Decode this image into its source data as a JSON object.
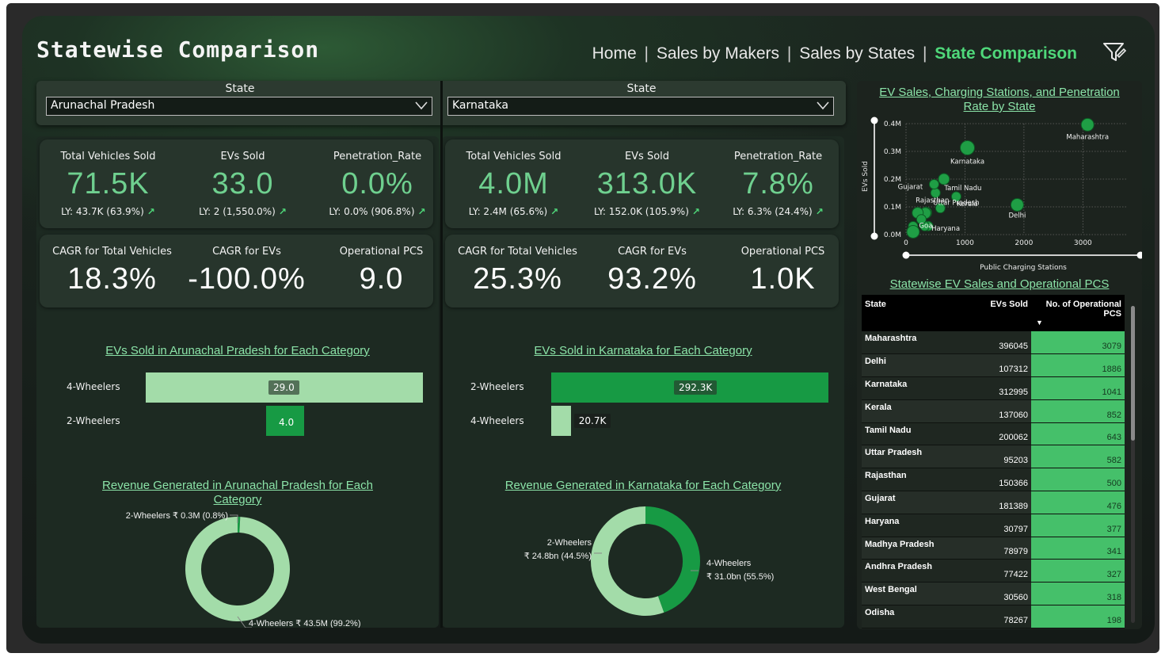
{
  "header": {
    "title": "Statewise Comparison",
    "nav": {
      "home": "Home",
      "makers": "Sales by Makers",
      "states": "Sales by States",
      "compare": "State Comparison",
      "sep": "|"
    },
    "filter_icon": "filter-icon"
  },
  "slicers": {
    "left": {
      "label": "State",
      "value": "Arunachal Pradesh"
    },
    "right": {
      "label": "State",
      "value": "Karnataka"
    }
  },
  "left": {
    "kpis": {
      "total": {
        "label": "Total Vehicles Sold",
        "value": "71.5K",
        "ly": "LY: 43.7K (63.9%)"
      },
      "evs": {
        "label": "EVs Sold",
        "value": "33.0",
        "ly": "LY: 2 (1,550.0%)"
      },
      "pen": {
        "label": "Penetration_Rate",
        "value": "0.0%",
        "ly": "LY: 0.0% (906.8%)"
      }
    },
    "cagr": {
      "total": {
        "label": "CAGR for Total Vehicles",
        "value": "18.3%"
      },
      "evs": {
        "label": "CAGR for EVs",
        "value": "-100.0%"
      },
      "pcs": {
        "label": "Operational PCS",
        "value": "9.0"
      }
    },
    "bar_title": "EVs Sold in Arunachal Pradesh for Each Category",
    "donut_title_1": "Revenue Generated in Arunachal Pradesh for Each",
    "donut_title_2": "Category",
    "donut_labels": {
      "a": "2-Wheelers ₹ 0.3M (0.8%)",
      "b": "4-Wheelers ₹ 43.5M (99.2%)"
    }
  },
  "right": {
    "kpis": {
      "total": {
        "label": "Total Vehicles Sold",
        "value": "4.0M",
        "ly": "LY: 2.4M (65.6%)"
      },
      "evs": {
        "label": "EVs Sold",
        "value": "313.0K",
        "ly": "LY: 152.0K (105.9%)"
      },
      "pen": {
        "label": "Penetration_Rate",
        "value": "7.8%",
        "ly": "LY: 6.3% (24.4%)"
      }
    },
    "cagr": {
      "total": {
        "label": "CAGR for Total Vehicles",
        "value": "25.3%"
      },
      "evs": {
        "label": "CAGR for EVs",
        "value": "93.2%"
      },
      "pcs": {
        "label": "Operational PCS",
        "value": "1.0K"
      }
    },
    "bar_title": "EVs Sold in Karnataka for Each Category",
    "donut_title": "Revenue Generated in Karnataka for Each Category",
    "donut_labels": {
      "a1": "2-Wheelers",
      "a2": "₹ 24.8bn (44.5%)",
      "b1": "4-Wheelers",
      "b2": "₹ 31.0bn (55.5%)"
    }
  },
  "scatter_title_1": "EV Sales, Charging Stations, and Penetration",
  "scatter_title_2": "Rate by State",
  "table": {
    "title": "Statewise EV Sales and Operational PCS",
    "headers": [
      "State",
      "EVs Sold",
      "No. of Operational PCS"
    ],
    "rows": [
      [
        "Maharashtra",
        "396045",
        "3079"
      ],
      [
        "Delhi",
        "107312",
        "1886"
      ],
      [
        "Karnataka",
        "312995",
        "1041"
      ],
      [
        "Kerala",
        "137060",
        "852"
      ],
      [
        "Tamil Nadu",
        "200062",
        "643"
      ],
      [
        "Uttar Pradesh",
        "95203",
        "582"
      ],
      [
        "Rajasthan",
        "150366",
        "500"
      ],
      [
        "Gujarat",
        "181389",
        "476"
      ],
      [
        "Haryana",
        "30797",
        "377"
      ],
      [
        "Madhya Pradesh",
        "78979",
        "341"
      ],
      [
        "Andhra Pradesh",
        "77422",
        "327"
      ],
      [
        "West Bengal",
        "30560",
        "318"
      ],
      [
        "Odisha",
        "78267",
        "198"
      ]
    ]
  },
  "chart_data": [
    {
      "type": "bar",
      "title": "EVs Sold in Arunachal Pradesh for Each Category",
      "orientation": "horizontal",
      "categories": [
        "4-Wheelers",
        "2-Wheelers"
      ],
      "values": [
        29,
        4
      ],
      "value_labels": [
        "29.0",
        "4.0"
      ],
      "colors": [
        "#a3dca9",
        "#179a44"
      ]
    },
    {
      "type": "bar",
      "title": "EVs Sold in Karnataka for Each Category",
      "orientation": "horizontal",
      "categories": [
        "2-Wheelers",
        "4-Wheelers"
      ],
      "values": [
        292300,
        20700
      ],
      "value_labels": [
        "292.3K",
        "20.7K"
      ],
      "colors": [
        "#179a44",
        "#a3dca9"
      ]
    },
    {
      "type": "pie",
      "title": "Revenue Generated in Arunachal Pradesh for Each Category",
      "labels": [
        "2-Wheelers",
        "4-Wheelers"
      ],
      "values": [
        0.8,
        99.2
      ],
      "colors": [
        "#179a44",
        "#a3dca9"
      ]
    },
    {
      "type": "pie",
      "title": "Revenue Generated in Karnataka for Each Category",
      "labels": [
        "2-Wheelers",
        "4-Wheelers"
      ],
      "values": [
        44.5,
        55.5
      ],
      "colors": [
        "#179a44",
        "#a3dca9"
      ]
    },
    {
      "type": "scatter",
      "title": "EV Sales, Charging Stations, and Penetration Rate by State",
      "xlabel": "Public Charging Stations",
      "ylabel": "EVs Sold",
      "xlim": [
        0,
        3600
      ],
      "ylim": [
        0,
        400000
      ],
      "xticks": [
        "0",
        "1000",
        "2000",
        "3000"
      ],
      "yticks": [
        "0.0M",
        "0.1M",
        "0.2M",
        "0.3M",
        "0.4M"
      ],
      "points": [
        {
          "label": "Maharashtra",
          "x": 3079,
          "y": 396045,
          "r": 8
        },
        {
          "label": "Delhi",
          "x": 1886,
          "y": 107312,
          "r": 8
        },
        {
          "label": "Karnataka",
          "x": 1041,
          "y": 312995,
          "r": 9
        },
        {
          "label": "Kerala",
          "x": 852,
          "y": 137060,
          "r": 6
        },
        {
          "label": "Tamil Nadu",
          "x": 643,
          "y": 200062,
          "r": 7
        },
        {
          "label": "Uttar Pradesh",
          "x": 582,
          "y": 95203,
          "r": 6
        },
        {
          "label": "Rajasthan",
          "x": 500,
          "y": 150366,
          "r": 6
        },
        {
          "label": "Gujarat",
          "x": 476,
          "y": 181389,
          "r": 6
        },
        {
          "label": "Haryana",
          "x": 377,
          "y": 30797,
          "r": 6
        },
        {
          "label": "Goa",
          "x": 120,
          "y": 30000,
          "r": 6
        },
        {
          "label": "",
          "x": 341,
          "y": 78979,
          "r": 7
        },
        {
          "label": "",
          "x": 327,
          "y": 77422,
          "r": 7
        },
        {
          "label": "",
          "x": 318,
          "y": 30560,
          "r": 6
        },
        {
          "label": "",
          "x": 198,
          "y": 78267,
          "r": 7
        },
        {
          "label": "",
          "x": 120,
          "y": 10000,
          "r": 8
        },
        {
          "label": "",
          "x": 260,
          "y": 55000,
          "r": 6
        }
      ]
    }
  ]
}
